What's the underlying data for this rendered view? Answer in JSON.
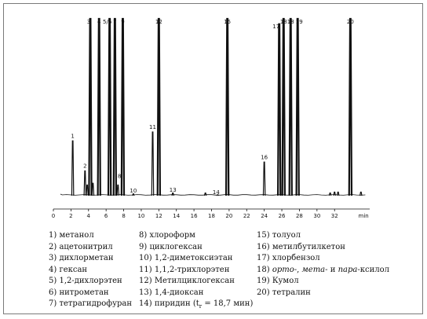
{
  "chart_data": {
    "type": "line",
    "title": "",
    "xlabel": "",
    "ylabel": "",
    "x_unit": "min",
    "xlim": [
      0,
      36
    ],
    "x_ticks": [
      0,
      2,
      4,
      6,
      8,
      10,
      12,
      14,
      16,
      18,
      20,
      22,
      24,
      26,
      28,
      30,
      32
    ],
    "x_tick_labels": [
      "0",
      "2",
      "4",
      "6",
      "8",
      "10",
      "12",
      "14",
      "16",
      "18",
      "20",
      "22",
      "24",
      "26",
      "28",
      "30",
      "32"
    ],
    "ylim": [
      0,
      100
    ],
    "grid": false,
    "peaks": [
      {
        "label": "1",
        "rt": 2.2,
        "height": 31
      },
      {
        "label": "2",
        "rt": 3.6,
        "height": 14
      },
      {
        "label": "",
        "rt": 3.85,
        "height": 6
      },
      {
        "label": "3",
        "rt": 4.2,
        "height": 100
      },
      {
        "label": "",
        "rt": 4.5,
        "height": 7
      },
      {
        "label": "4",
        "rt": 5.2,
        "height": 100
      },
      {
        "label": "5/6",
        "rt": 6.4,
        "height": 100
      },
      {
        "label": "7",
        "rt": 7.0,
        "height": 100
      },
      {
        "label": "8",
        "rt": 7.35,
        "height": 6
      },
      {
        "label": "9",
        "rt": 7.9,
        "height": 100
      },
      {
        "label": "10",
        "rt": 9.1,
        "height": 1
      },
      {
        "label": "11",
        "rt": 11.3,
        "height": 36
      },
      {
        "label": "12",
        "rt": 12.0,
        "height": 100
      },
      {
        "label": "13",
        "rt": 13.6,
        "height": 1.5
      },
      {
        "label": "",
        "rt": 17.3,
        "height": 1.5
      },
      {
        "label": "14",
        "rt": 18.7,
        "height": 0.5
      },
      {
        "label": "15",
        "rt": 19.8,
        "height": 100
      },
      {
        "label": "16",
        "rt": 24.0,
        "height": 19
      },
      {
        "label": "17",
        "rt": 25.7,
        "height": 97
      },
      {
        "label": "18",
        "rt": 26.2,
        "height": 100
      },
      {
        "label": "18",
        "rt": 27.0,
        "height": 100
      },
      {
        "label": "19",
        "rt": 27.8,
        "height": 100
      },
      {
        "label": "",
        "rt": 31.5,
        "height": 1.5
      },
      {
        "label": "",
        "rt": 32.0,
        "height": 2
      },
      {
        "label": "",
        "rt": 32.4,
        "height": 2
      },
      {
        "label": "20",
        "rt": 33.8,
        "height": 100
      },
      {
        "label": "",
        "rt": 35.0,
        "height": 2
      }
    ],
    "legend": [
      {
        "num": "1)",
        "text": "метанол"
      },
      {
        "num": "2)",
        "text": "ацетонитрил"
      },
      {
        "num": "3)",
        "text": "дихлорметан"
      },
      {
        "num": "4)",
        "text": "гексан"
      },
      {
        "num": "5)",
        "text": "1,2-дихлорэтен"
      },
      {
        "num": "6)",
        "text": "нитрометан"
      },
      {
        "num": "7)",
        "text": "тетрагидрофуран"
      },
      {
        "num": "8)",
        "text": "хлороформ"
      },
      {
        "num": "9)",
        "text": "циклогексан"
      },
      {
        "num": "10)",
        "text": "1,2-диметоксиэтан"
      },
      {
        "num": "11)",
        "text": "1,1,2-трихлорэтен"
      },
      {
        "num": "12)",
        "text": "Метилциклогексан"
      },
      {
        "num": "13)",
        "text": "1,4-диоксан"
      },
      {
        "num": "14)",
        "text": "пиридин (t"
      },
      {
        "num": "15)",
        "text": "толуол"
      },
      {
        "num": "16)",
        "text": "метилбутилкетон"
      },
      {
        "num": "17)",
        "text": "хлорбензол"
      },
      {
        "num": "18)",
        "text": "орто-, мета- и пара-ксилол"
      },
      {
        "num": "19)",
        "text": "Кумол"
      },
      {
        "num": "20)",
        "text": "тетралин"
      }
    ],
    "legend_14_sub": "r",
    "legend_14_tail": " = 18,7 мин)",
    "legend_18_parts": [
      "орто-",
      ", ",
      "мета-",
      " и ",
      "пара-",
      "ксилол"
    ]
  },
  "colors": {
    "trace": "#111111",
    "axis": "#111111",
    "frame": "#7a7a7a"
  }
}
